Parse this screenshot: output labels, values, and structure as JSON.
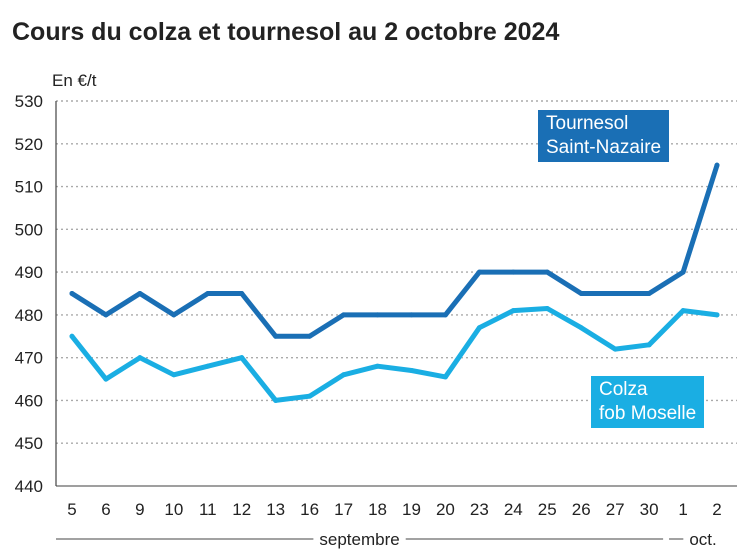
{
  "chart_data": {
    "type": "line",
    "title": "Cours du colza et tournesol au 2 octobre 2024",
    "ylabel": "En €/t",
    "ylim": [
      440,
      530
    ],
    "yticks": [
      "530",
      "520",
      "510",
      "500",
      "490",
      "480",
      "470",
      "460",
      "450",
      "440"
    ],
    "grid": true,
    "categories": [
      "5",
      "6",
      "9",
      "10",
      "11",
      "12",
      "13",
      "16",
      "17",
      "18",
      "19",
      "20",
      "23",
      "24",
      "25",
      "26",
      "27",
      "30",
      "1",
      "2"
    ],
    "months": [
      {
        "label": "septembre",
        "from": 0,
        "to": 17
      },
      {
        "label": "oct.",
        "from": 18,
        "to": 19
      }
    ],
    "series": [
      {
        "name": "Tournesol Saint-Nazaire",
        "label_lines": [
          "Tournesol",
          "Saint-Nazaire"
        ],
        "color": "#1a6fb5",
        "values": [
          485,
          480,
          485,
          480,
          485,
          485,
          475,
          475,
          480,
          480,
          480,
          480,
          490,
          490,
          490,
          485,
          485,
          485,
          490,
          515
        ]
      },
      {
        "name": "Colza fob Moselle",
        "label_lines": [
          "Colza",
          "fob Moselle"
        ],
        "color": "#1aaee3",
        "values": [
          475,
          465,
          470,
          466,
          468,
          470,
          460,
          461,
          466,
          468,
          467,
          465.5,
          477,
          481,
          481.5,
          477,
          472,
          473,
          481,
          480
        ]
      }
    ]
  }
}
